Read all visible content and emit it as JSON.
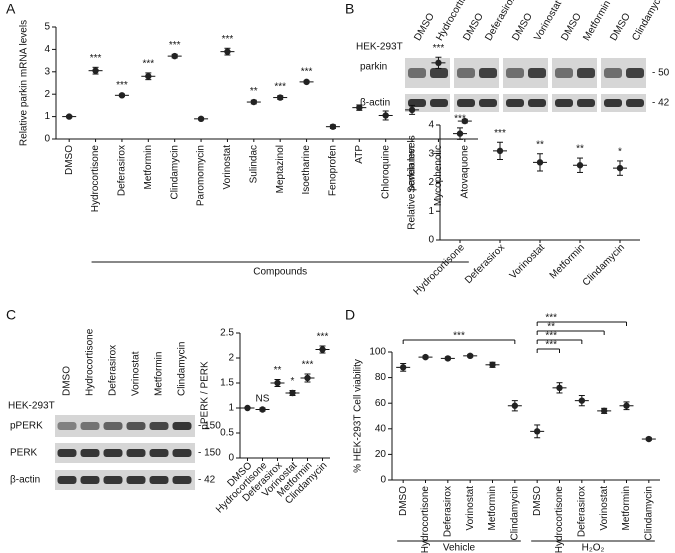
{
  "panels": [
    "A",
    "B",
    "C",
    "D"
  ],
  "blots": {
    "B": {
      "cell_line": "HEK-293T",
      "lanes": [
        "DMSO",
        "Hydrocortisone",
        "DMSO",
        "Deferasirox",
        "DMSO",
        "Vorinostat",
        "DMSO",
        "Metformin",
        "DMSO",
        "Clindamycin"
      ],
      "rows": [
        "parkin",
        "β-actin"
      ],
      "markers": [
        "- 50",
        "- 42"
      ]
    },
    "C": {
      "cell_line": "HEK-293T",
      "lanes": [
        "DMSO",
        "Hydrocortisone",
        "Deferasirox",
        "Vorinostat",
        "Metformin",
        "Clindamycin"
      ],
      "rows": [
        "pPERK",
        "PERK",
        "β-actin"
      ],
      "markers": [
        "- 150",
        "- 150",
        "- 42"
      ]
    }
  },
  "chart_data": [
    {
      "type": "dot",
      "ylabel": "Relative parkin mRNA levels",
      "xlabel": "Compounds",
      "color": "#222222",
      "categories": [
        "DMSO",
        "Hydrocortisone",
        "Deferasirox",
        "Metformin",
        "Clindamycin",
        "Paromomycin",
        "Vorinostat",
        "Sulindac",
        "Meptazinol",
        "Isoetharine",
        "Fenoprofen",
        "ATP",
        "Chloroquine",
        "Sevelamer",
        "Mycophenolic",
        "Atovaquone"
      ],
      "values": [
        1.0,
        3.05,
        1.95,
        2.8,
        3.7,
        0.9,
        3.9,
        1.65,
        1.85,
        2.55,
        0.55,
        1.4,
        1.05,
        1.3,
        3.4,
        0.8
      ],
      "errors": [
        0.05,
        0.15,
        0.05,
        0.15,
        0.08,
        0.05,
        0.15,
        0.08,
        0.08,
        0.05,
        0.08,
        0.12,
        0.2,
        0.2,
        0.25,
        0.08
      ],
      "annotations": [
        null,
        "***",
        "***",
        "***",
        "***",
        null,
        "***",
        "**",
        "***",
        "***",
        null,
        null,
        null,
        null,
        "***",
        null
      ],
      "ylim": [
        0,
        5
      ],
      "yticks": [
        0,
        1,
        2,
        3,
        4,
        5
      ]
    },
    {
      "type": "dot",
      "ylabel": "Relative parkin levels",
      "color": "#222222",
      "categories": [
        "Hydrocortisone",
        "Deferasirox",
        "Vorinostat",
        "Metformin",
        "Clindamycin"
      ],
      "values": [
        3.7,
        3.1,
        2.7,
        2.6,
        2.5
      ],
      "errors": [
        0.2,
        0.3,
        0.3,
        0.25,
        0.25
      ],
      "annotations": [
        "***",
        "***",
        "**",
        "**",
        "*"
      ],
      "ylim": [
        0,
        4
      ],
      "yticks": [
        0,
        1,
        2,
        3,
        4
      ]
    },
    {
      "type": "dot",
      "ylabel": "pPERK / PERK",
      "color": "#222222",
      "categories": [
        "DMSO",
        "Hydrocortisone",
        "Deferasirox",
        "Vorinostat",
        "Metformin",
        "Clindamycin"
      ],
      "values": [
        1.0,
        0.97,
        1.5,
        1.3,
        1.6,
        2.17
      ],
      "errors": [
        0.0,
        0.03,
        0.07,
        0.05,
        0.08,
        0.07
      ],
      "annotations": [
        null,
        "NS",
        "**",
        "*",
        "***",
        "***"
      ],
      "ylim": [
        0,
        2.5
      ],
      "yticks": [
        0,
        0.5,
        1,
        1.5,
        2,
        2.5
      ]
    },
    {
      "type": "dot",
      "ylabel": "% HEK-293T Cell viability",
      "color": "#222222",
      "categories": [
        "DMSO",
        "Hydrocortisone",
        "Deferasirox",
        "Vorinostat",
        "Metformin",
        "Clindamycin",
        "DMSO",
        "Hydrocortisone",
        "Deferasirox",
        "Vorinostat",
        "Metformin",
        "Clindamycin"
      ],
      "values": [
        88,
        96,
        95,
        97,
        90,
        58,
        38,
        72,
        62,
        54,
        58,
        32
      ],
      "errors": [
        3,
        1,
        1,
        1,
        2,
        4,
        5,
        4,
        4,
        2,
        3,
        1
      ],
      "annotations": [
        null,
        null,
        null,
        null,
        null,
        null,
        null,
        null,
        null,
        null,
        null,
        null
      ],
      "groups": [
        "Vehicle",
        "H₂O₂"
      ],
      "comparisons": [
        "***",
        "***",
        "**",
        "***",
        "***"
      ],
      "ylim": [
        0,
        100
      ],
      "yticks": [
        0,
        20,
        40,
        60,
        80,
        100
      ]
    }
  ]
}
